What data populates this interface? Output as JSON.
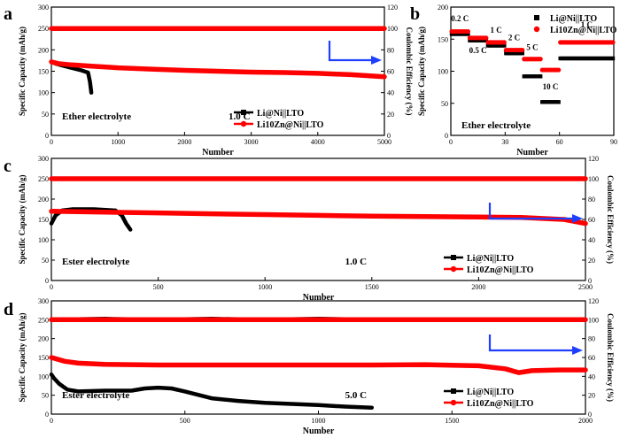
{
  "colors": {
    "black_series": "#000000",
    "red_series": "#ff0000",
    "arrow": "#1f3fff"
  },
  "chart_data": [
    {
      "panel": "a",
      "type": "line",
      "annotation": "Ether electrolyte",
      "rate": "1.0 C",
      "xlabel": "Number",
      "ylabel": "Specific Capacity (mAh/g)",
      "y2label": "Coulombic Efficiency (%)",
      "xlim": [
        0,
        5000
      ],
      "ylim": [
        0,
        300
      ],
      "y2lim": [
        0,
        120
      ],
      "xticks": [
        0,
        1000,
        2000,
        3000,
        4000,
        5000
      ],
      "yticks": [
        0,
        50,
        100,
        150,
        200,
        250,
        300
      ],
      "y2ticks": [
        0,
        20,
        40,
        60,
        80,
        100,
        120
      ],
      "legend": [
        "Li@Ni||LTO",
        "Li10Zn@Ni||LTO"
      ],
      "legend_position": "bottom-right",
      "series": [
        {
          "name": "Li@Ni||LTO",
          "kind": "capacity",
          "color": "black",
          "x": [
            0,
            60,
            150,
            250,
            350,
            450,
            550,
            580,
            600
          ],
          "y": [
            172,
            168,
            164,
            160,
            156,
            152,
            147,
            125,
            100
          ]
        },
        {
          "name": "Li@Ni||LTO",
          "kind": "efficiency",
          "color": "black",
          "x": [
            0,
            100,
            200,
            300,
            400,
            500,
            600
          ],
          "y": [
            100,
            100,
            100,
            100,
            100,
            100,
            100
          ]
        },
        {
          "name": "Li10Zn@Ni||LTO",
          "kind": "capacity",
          "color": "red",
          "x": [
            0,
            100,
            300,
            600,
            1000,
            1500,
            2000,
            2500,
            3000,
            3500,
            4000,
            4500,
            5000
          ],
          "y": [
            172,
            168,
            165,
            162,
            158,
            155,
            152,
            150,
            148,
            147,
            145,
            142,
            137
          ]
        },
        {
          "name": "Li10Zn@Ni||LTO",
          "kind": "efficiency",
          "color": "red",
          "x": [
            0,
            1000,
            2000,
            3000,
            4000,
            4600,
            4700,
            5000
          ],
          "y": [
            100,
            100,
            100,
            100,
            100,
            100,
            100,
            100
          ]
        }
      ]
    },
    {
      "panel": "b",
      "type": "scatter",
      "annotation": "Ether electrolyte",
      "xlabel": "Number",
      "ylabel": "Specific Capacity (mAh/g)",
      "xlim": [
        0,
        90
      ],
      "ylim": [
        0,
        200
      ],
      "xticks": [
        0,
        30,
        60,
        90
      ],
      "yticks": [
        0,
        50,
        100,
        150,
        200
      ],
      "legend": [
        "Li@Ni||LTO",
        "Li10Zn@Ni||LTO"
      ],
      "legend_position": "top-right",
      "rate_labels": [
        "0.2 C",
        "0.5 C",
        "1 C",
        "2 C",
        "5 C",
        "10 C",
        "1 C"
      ],
      "series": [
        {
          "name": "Li@Ni||LTO",
          "color": "black",
          "segments": [
            {
              "x": [
                0,
                10
              ],
              "y": 158
            },
            {
              "x": [
                10,
                20
              ],
              "y": 148
            },
            {
              "x": [
                20,
                30
              ],
              "y": 140
            },
            {
              "x": [
                30,
                40
              ],
              "y": 128
            },
            {
              "x": [
                40,
                50
              ],
              "y": 92
            },
            {
              "x": [
                50,
                60
              ],
              "y": 52
            },
            {
              "x": [
                60,
                90
              ],
              "y": 120
            }
          ]
        },
        {
          "name": "Li10Zn@Ni||LTO",
          "color": "red",
          "segments": [
            {
              "x": [
                0,
                10
              ],
              "y": 162
            },
            {
              "x": [
                10,
                20
              ],
              "y": 152
            },
            {
              "x": [
                20,
                30
              ],
              "y": 145
            },
            {
              "x": [
                30,
                40
              ],
              "y": 133
            },
            {
              "x": [
                40,
                50
              ],
              "y": 119
            },
            {
              "x": [
                50,
                60
              ],
              "y": 102
            },
            {
              "x": [
                60,
                90
              ],
              "y": 145
            }
          ]
        }
      ]
    },
    {
      "panel": "c",
      "type": "line",
      "annotation": "Ester electrolyte",
      "rate": "1.0 C",
      "xlabel": "Number",
      "ylabel": "Specific Capacity (mAh/g)",
      "y2label": "Coulombic Efficiency (%)",
      "xlim": [
        0,
        2500
      ],
      "ylim": [
        0,
        300
      ],
      "y2lim": [
        0,
        120
      ],
      "xticks": [
        0,
        500,
        1000,
        1500,
        2000,
        2500
      ],
      "yticks": [
        0,
        50,
        100,
        150,
        200,
        250,
        300
      ],
      "y2ticks": [
        0,
        20,
        40,
        60,
        80,
        100,
        120
      ],
      "legend": [
        "Li@Ni||LTO",
        "Li10Zn@Ni||LTO"
      ],
      "legend_position": "bottom-right",
      "series": [
        {
          "name": "Li@Ni||LTO",
          "kind": "capacity",
          "color": "black",
          "x": [
            0,
            20,
            50,
            100,
            200,
            300,
            330,
            350,
            370
          ],
          "y": [
            140,
            160,
            172,
            175,
            175,
            172,
            160,
            140,
            125
          ]
        },
        {
          "name": "Li@Ni||LTO",
          "kind": "efficiency",
          "color": "black",
          "x": [
            0,
            100,
            200,
            300,
            380
          ],
          "y": [
            100,
            100,
            100,
            100,
            100
          ]
        },
        {
          "name": "Li10Zn@Ni||LTO",
          "kind": "capacity",
          "color": "red",
          "x": [
            0,
            250,
            500,
            750,
            1000,
            1250,
            1500,
            1750,
            2000,
            2200,
            2400,
            2500
          ],
          "y": [
            170,
            168,
            166,
            164,
            162,
            160,
            158,
            157,
            156,
            155,
            150,
            140
          ]
        },
        {
          "name": "Li10Zn@Ni||LTO",
          "kind": "efficiency",
          "color": "red",
          "x": [
            0,
            500,
            1000,
            1500,
            2000,
            2500
          ],
          "y": [
            100,
            100,
            100,
            100,
            100,
            100
          ]
        }
      ]
    },
    {
      "panel": "d",
      "type": "line",
      "annotation": "Ester electrolyte",
      "rate": "5.0 C",
      "xlabel": "Number",
      "ylabel": "Specific Capacity (mAh/g)",
      "y2label": "Coulombic Efficiency (%)",
      "xlim": [
        0,
        2000
      ],
      "ylim": [
        0,
        300
      ],
      "y2lim": [
        0,
        120
      ],
      "xticks": [
        0,
        500,
        1000,
        1500,
        2000
      ],
      "yticks": [
        0,
        50,
        100,
        150,
        200,
        250,
        300
      ],
      "y2ticks": [
        0,
        20,
        40,
        60,
        80,
        100,
        120
      ],
      "legend": [
        "Li@Ni||LTO",
        "Li10Zn@Ni||LTO"
      ],
      "legend_position": "bottom-right",
      "series": [
        {
          "name": "Li@Ni||LTO",
          "kind": "capacity",
          "color": "black",
          "x": [
            0,
            10,
            30,
            60,
            100,
            200,
            300,
            350,
            400,
            450,
            500,
            600,
            700,
            800,
            900,
            1000,
            1100,
            1200
          ],
          "y": [
            105,
            95,
            80,
            65,
            60,
            62,
            62,
            68,
            70,
            68,
            60,
            42,
            35,
            30,
            27,
            24,
            20,
            17
          ]
        },
        {
          "name": "Li@Ni||LTO",
          "kind": "efficiency",
          "color": "black",
          "x": [
            0,
            200,
            400,
            600,
            800,
            1000,
            1200
          ],
          "y": [
            100,
            101,
            100,
            101,
            100,
            101,
            100
          ]
        },
        {
          "name": "Li10Zn@Ni||LTO",
          "kind": "capacity",
          "color": "red",
          "x": [
            0,
            50,
            100,
            200,
            400,
            600,
            800,
            1000,
            1200,
            1400,
            1600,
            1700,
            1750,
            1800,
            1900,
            2000
          ],
          "y": [
            150,
            140,
            135,
            132,
            130,
            130,
            130,
            130,
            130,
            131,
            128,
            120,
            110,
            115,
            117,
            117
          ]
        },
        {
          "name": "Li10Zn@Ni||LTO",
          "kind": "efficiency",
          "color": "red",
          "x": [
            0,
            500,
            1000,
            1500,
            2000
          ],
          "y": [
            100,
            100,
            100,
            100,
            100
          ]
        }
      ]
    }
  ]
}
